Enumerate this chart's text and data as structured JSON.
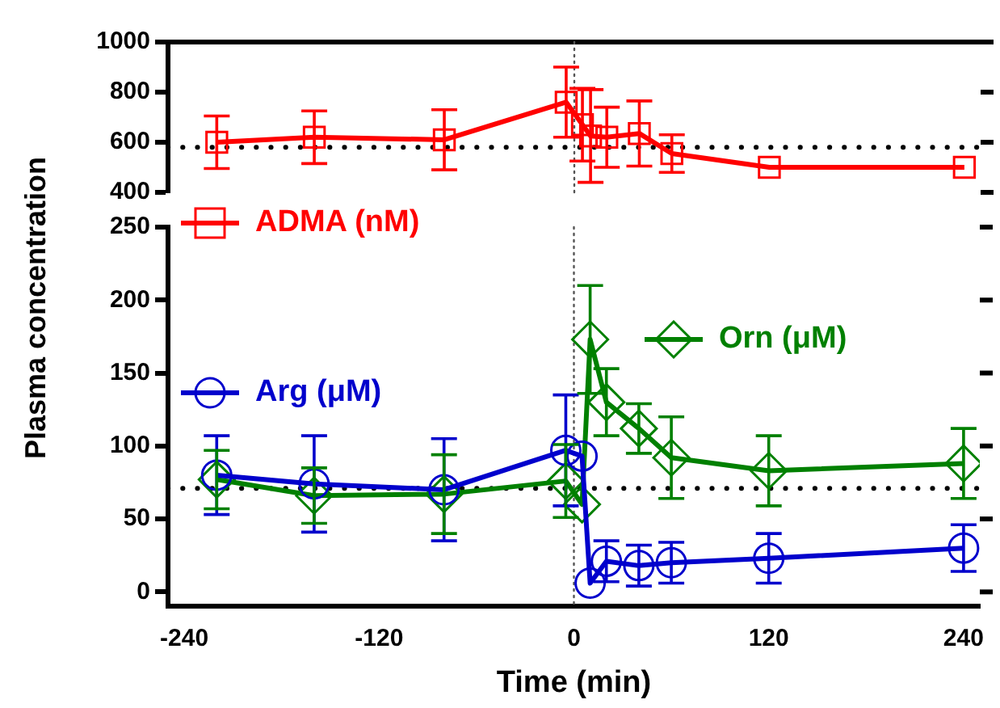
{
  "chart_data": [
    {
      "type": "line",
      "x": [
        -220,
        -160,
        -80,
        -5,
        5,
        10,
        20,
        40,
        60,
        120,
        240
      ],
      "xlim": [
        -250,
        250
      ],
      "xticks": [
        -240,
        -120,
        0,
        120,
        240
      ],
      "ylim": [
        400,
        1000
      ],
      "yticks": [
        400,
        600,
        800,
        1000
      ],
      "tick_labels": "y",
      "marker": "square",
      "line_style": "solid",
      "legend": "bottom left",
      "series": [
        {
          "name": "ADMA (nM)",
          "color": "#ff0000",
          "values": [
            600,
            620,
            610,
            760,
            670,
            625,
            620,
            635,
            555,
            500,
            500
          ],
          "errors": [
            105,
            105,
            120,
            140,
            145,
            185,
            120,
            130,
            75,
            null,
            null
          ]
        }
      ],
      "ref_lines": [
        {
          "axis": "y",
          "value": 580,
          "line_style": "dotted",
          "color": "#000000"
        },
        {
          "axis": "x",
          "value": 0,
          "line_style": "dotted",
          "color": "#555555"
        }
      ]
    },
    {
      "type": "line",
      "x": [
        -220,
        -160,
        -80,
        -5,
        5,
        10,
        20,
        40,
        60,
        120,
        240
      ],
      "xlim": [
        -250,
        250
      ],
      "xticks": [
        -240,
        -120,
        0,
        120,
        240
      ],
      "ylim": [
        -10,
        250
      ],
      "yticks": [
        0,
        50,
        100,
        150,
        200,
        250
      ],
      "xlabel": "Time (min)",
      "ylabel": "Plasma concentration",
      "line_style": "solid",
      "legend": "top left",
      "series": [
        {
          "name": "Arg (μM)",
          "color": "#0000cc",
          "marker": "circle",
          "values": [
            80,
            74,
            70,
            97,
            93,
            6,
            21,
            18,
            20,
            23,
            30
          ],
          "errors": [
            27,
            33,
            35,
            38,
            null,
            null,
            14,
            14,
            14,
            17,
            16
          ]
        },
        {
          "name": "Orn (μM)",
          "color": "#008000",
          "marker": "diamond",
          "values": [
            77,
            66,
            67,
            76,
            60,
            173,
            130,
            112,
            92,
            83,
            88
          ],
          "errors": [
            20,
            19,
            27,
            25,
            null,
            37,
            23,
            17,
            28,
            24,
            24
          ]
        }
      ],
      "ref_lines": [
        {
          "axis": "y",
          "value": 71,
          "line_style": "dotted",
          "color": "#000000"
        },
        {
          "axis": "x",
          "value": 0,
          "line_style": "dotted",
          "color": "#555555"
        }
      ]
    }
  ]
}
